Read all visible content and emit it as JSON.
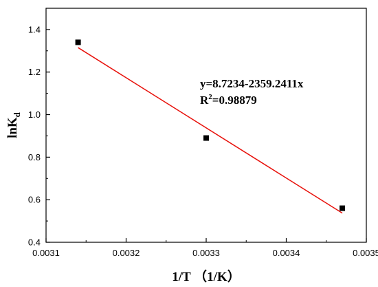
{
  "chart_data": {
    "type": "scatter",
    "xlabel": "1/T （1/K）",
    "ylabel_main": "lnK",
    "ylabel_sub": "d",
    "xlim": [
      0.0031,
      0.0035
    ],
    "ylim": [
      0.4,
      1.5
    ],
    "xticks": [
      "0.0031",
      "0.0032",
      "0.0033",
      "0.0034",
      "0.0035"
    ],
    "yticks": [
      "0.4",
      "0.6",
      "0.8",
      "1.0",
      "1.2",
      "1.4"
    ],
    "xtick_values": [
      0.0031,
      0.0032,
      0.0033,
      0.0034,
      0.0035
    ],
    "ytick_values": [
      0.4,
      0.6,
      0.8,
      1.0,
      1.2,
      1.4
    ],
    "series": [
      {
        "type": "scatter",
        "x": [
          0.00314,
          0.0033,
          0.00347
        ],
        "y": [
          1.34,
          0.89,
          0.56
        ],
        "color": "#000000"
      },
      {
        "type": "line",
        "x": [
          0.00314,
          0.00347
        ],
        "y": [
          1.315,
          0.537
        ],
        "color": "#e8120c"
      }
    ],
    "annotations": {
      "equation": "y=8.7234-2359.2411x",
      "r2_prefix": "R",
      "r2_sup": "2",
      "r2_value": "=0.98879"
    },
    "grid": false
  }
}
